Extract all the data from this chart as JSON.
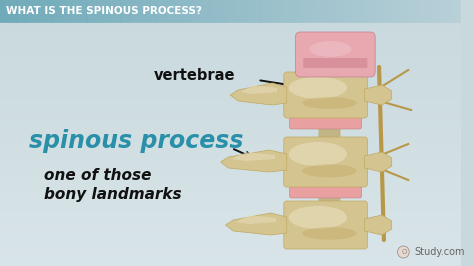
{
  "title_text": "WHAT IS THE SPINOUS PROCESS?",
  "title_color": "white",
  "title_fontsize": 7.5,
  "title_bg_left": "#6ba8b8",
  "title_bg_right": "#b8d0d8",
  "main_bg_top": "#c8d8dc",
  "main_bg_bottom": "#d0dce0",
  "spinous_text": "spinous process",
  "spinous_color": "#2a8fa8",
  "spinous_fontsize": 17,
  "subtitle_text": "one of those\nbony landmarks",
  "subtitle_color": "#111111",
  "subtitle_fontsize": 11,
  "vertebrae_label": "vertebrae",
  "vertebrae_color": "#111111",
  "vertebrae_fontsize": 10.5,
  "watermark": "Study.com",
  "watermark_color": "#666666",
  "watermark_fontsize": 7,
  "arrow_color": "#111111",
  "bone_light": "#e8dfc0",
  "bone_mid": "#d4c490",
  "bone_dark": "#c0a860",
  "bone_shadow": "#a89050",
  "disc_pink": "#e8a0a0",
  "disc_top_pink": "#d88090",
  "nerve_color": "#b89848",
  "spinal_cord_color": "#c87060"
}
